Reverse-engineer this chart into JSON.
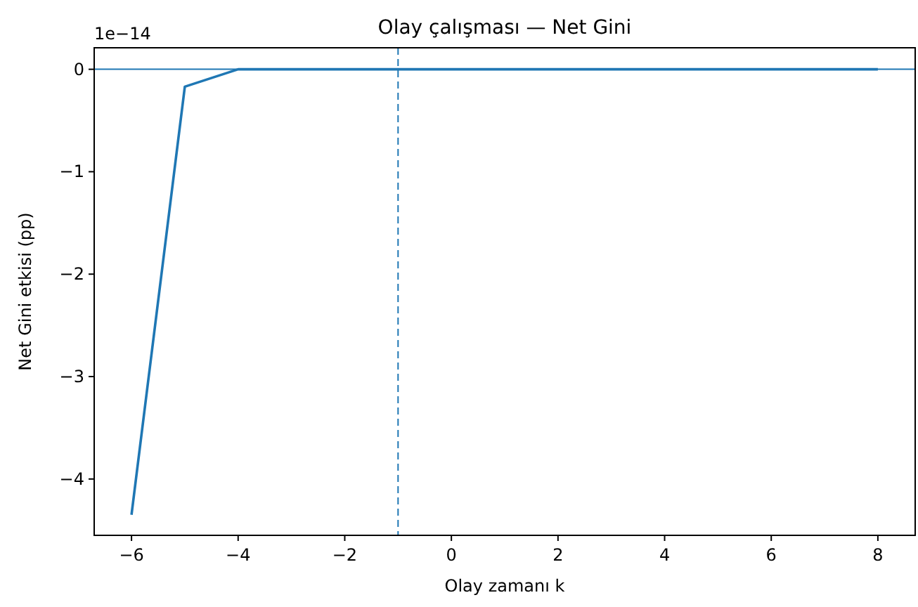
{
  "chart_data": {
    "type": "line",
    "title": "Olay çalışması — Net Gini",
    "xlabel": "Olay zamanı k",
    "ylabel": "Net Gini etkisi (pp)",
    "annotations": [
      "1e−14"
    ],
    "x": [
      -6,
      -5,
      -4,
      -3,
      -2,
      -1,
      0,
      1,
      2,
      3,
      4,
      5,
      6,
      7,
      8
    ],
    "series": [
      {
        "color": "#1f77b4",
        "values": [
          -4.35,
          -0.17,
          0,
          0,
          0,
          0,
          0,
          0,
          0,
          0,
          0,
          0,
          0,
          0,
          0
        ]
      }
    ],
    "xlim": [
      -6.7,
      8.7
    ],
    "ylim": [
      -4.55,
      0.21
    ],
    "xticks": [
      {
        "value": -6,
        "label": "−6"
      },
      {
        "value": -4,
        "label": "−4"
      },
      {
        "value": -2,
        "label": "−2"
      },
      0,
      2,
      4,
      6,
      8
    ],
    "yticks": [
      {
        "value": -4,
        "label": "−4"
      },
      {
        "value": -3,
        "label": "−3"
      },
      {
        "value": -2,
        "label": "−2"
      },
      {
        "value": -1,
        "label": "−1"
      },
      0
    ],
    "ref_lines": [
      {
        "axis": "y",
        "value": 0,
        "color": "#1f77b4",
        "line_style": "solid"
      },
      {
        "axis": "x",
        "value": -1,
        "color": "#1f77b4",
        "line_style": "dashed"
      }
    ],
    "grid": false,
    "marker": "none",
    "line_style": "solid"
  }
}
